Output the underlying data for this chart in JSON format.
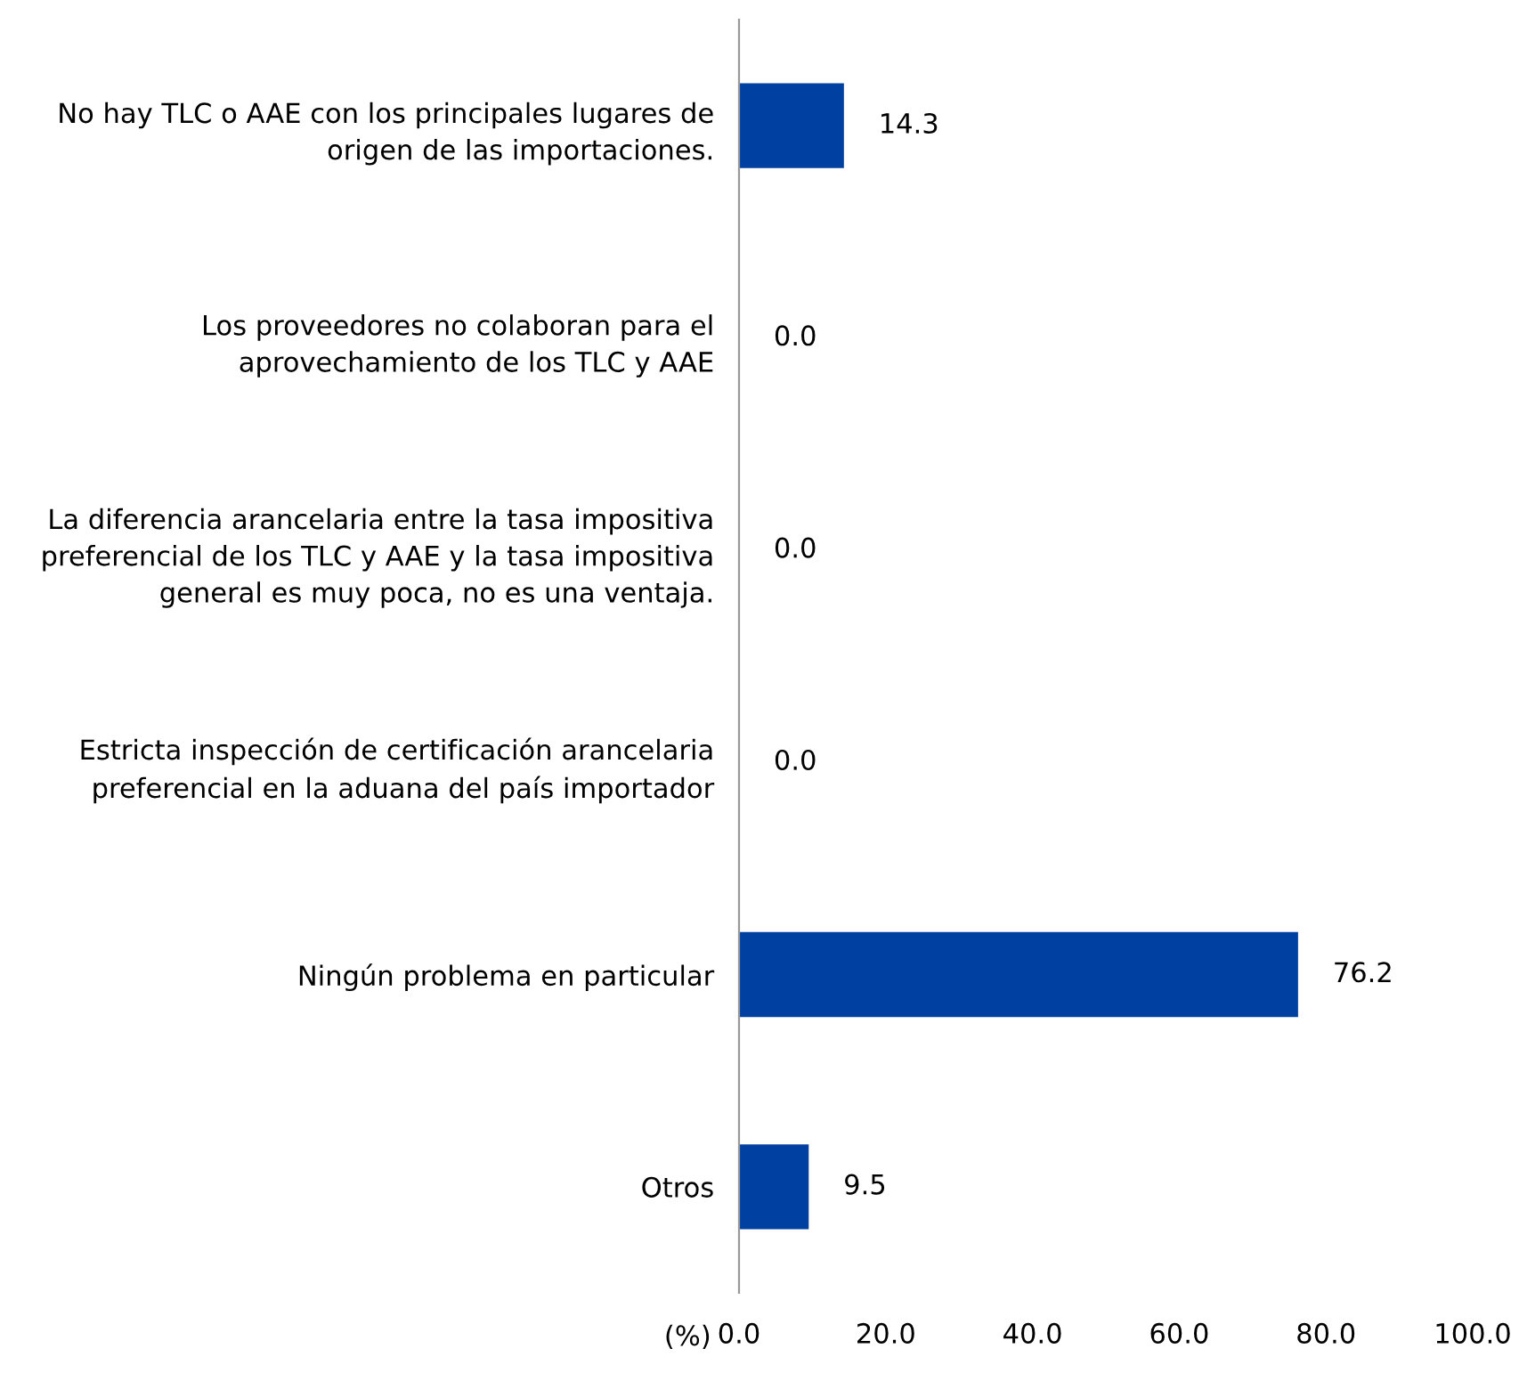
{
  "chart_data": {
    "type": "bar",
    "orientation": "horizontal",
    "categories": [
      "No hay TLC o AAE con los principales lugares de\norigen de las importaciones.",
      "Los proveedores no colaboran para el\naprovechamiento de los TLC y AAE",
      "La diferencia arancelaria entre la tasa impositiva\npreferencial de los TLC y AAE y la tasa impositiva\ngeneral es muy poca, no es una ventaja.",
      "Estricta inspección de certificación arancelaria\npreferencial en la aduana del país importador",
      "Ningún problema en particular",
      "Otros"
    ],
    "values": [
      14.3,
      0.0,
      0.0,
      0.0,
      76.2,
      9.5
    ],
    "value_labels": [
      "14.3",
      "0.0",
      "0.0",
      "0.0",
      "76.2",
      "9.5"
    ],
    "color": "#0040a0",
    "xlabel": "(%)",
    "xlim": [
      0,
      100
    ],
    "xticks": [
      {
        "value": 0,
        "label": "0.0"
      },
      {
        "value": 20,
        "label": "20.0"
      },
      {
        "value": 40,
        "label": "40.0"
      },
      {
        "value": 60,
        "label": "60.0"
      },
      {
        "value": 80,
        "label": "80.0"
      },
      {
        "value": 100,
        "label": "100.0"
      }
    ],
    "grid": false,
    "legend": false
  }
}
